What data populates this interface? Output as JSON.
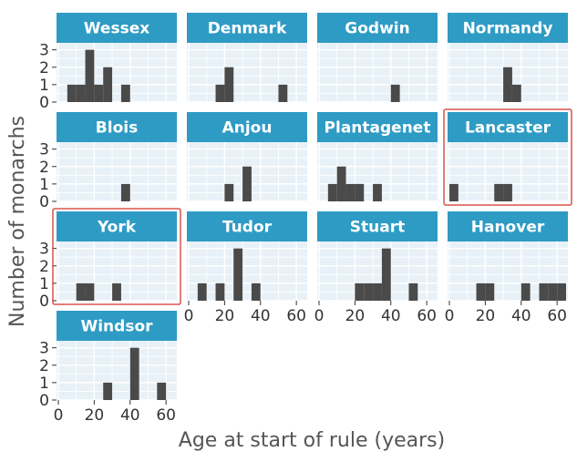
{
  "chart_data": {
    "type": "bar",
    "subtype": "faceted-histogram",
    "xlabel": "Age at start of rule (years)",
    "ylabel": "Number of monarchs",
    "xlim": [
      0,
      65
    ],
    "ylim": [
      0,
      3.4
    ],
    "x_ticks": [
      0,
      20,
      40,
      60
    ],
    "y_ticks": [
      0,
      1,
      2,
      3
    ],
    "bin_width": 5,
    "grid": true,
    "colors": {
      "strip": "#2e9bc4",
      "strip_text": "#ffffff",
      "panel": "#e8f1f7",
      "grid": "#ffffff",
      "bar": "#4a4a4a",
      "highlight": "#d9534f",
      "axis_text": "#333333"
    },
    "facets": [
      {
        "name": "Wessex",
        "bins": [
          [
            5,
            1
          ],
          [
            10,
            1
          ],
          [
            15,
            3
          ],
          [
            20,
            1
          ],
          [
            25,
            2
          ],
          [
            35,
            1
          ]
        ]
      },
      {
        "name": "Denmark",
        "bins": [
          [
            15,
            1
          ],
          [
            20,
            2
          ],
          [
            50,
            1
          ]
        ]
      },
      {
        "name": "Godwin",
        "bins": [
          [
            40,
            1
          ]
        ]
      },
      {
        "name": "Normandy",
        "bins": [
          [
            30,
            2
          ],
          [
            35,
            1
          ]
        ]
      },
      {
        "name": "Blois",
        "bins": [
          [
            35,
            1
          ]
        ]
      },
      {
        "name": "Anjou",
        "bins": [
          [
            20,
            1
          ],
          [
            30,
            2
          ]
        ]
      },
      {
        "name": "Plantagenet",
        "bins": [
          [
            5,
            1
          ],
          [
            10,
            2
          ],
          [
            15,
            1
          ],
          [
            20,
            1
          ],
          [
            30,
            1
          ]
        ]
      },
      {
        "name": "Lancaster",
        "highlighted": true,
        "bins": [
          [
            0,
            1
          ],
          [
            25,
            1
          ],
          [
            30,
            1
          ]
        ]
      },
      {
        "name": "York",
        "highlighted": true,
        "bins": [
          [
            10,
            1
          ],
          [
            15,
            1
          ],
          [
            30,
            1
          ]
        ]
      },
      {
        "name": "Tudor",
        "bins": [
          [
            5,
            1
          ],
          [
            15,
            1
          ],
          [
            25,
            3
          ],
          [
            35,
            1
          ]
        ]
      },
      {
        "name": "Stuart",
        "bins": [
          [
            20,
            1
          ],
          [
            25,
            1
          ],
          [
            30,
            1
          ],
          [
            35,
            3
          ],
          [
            50,
            1
          ]
        ]
      },
      {
        "name": "Hanover",
        "bins": [
          [
            15,
            1
          ],
          [
            20,
            1
          ],
          [
            40,
            1
          ],
          [
            50,
            1
          ],
          [
            55,
            1
          ],
          [
            60,
            1
          ]
        ]
      },
      {
        "name": "Windsor",
        "bins": [
          [
            25,
            1
          ],
          [
            40,
            3
          ],
          [
            55,
            1
          ]
        ]
      }
    ]
  }
}
